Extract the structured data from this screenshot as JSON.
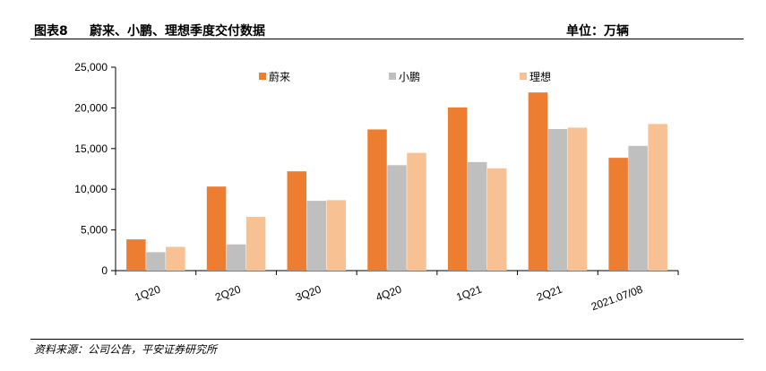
{
  "header": {
    "figure_label": "图表8",
    "title": "蔚来、小鹏、理想季度交付数据",
    "unit": "单位：万辆"
  },
  "source": "资料来源：公司公告，平安证券研究所",
  "chart_data": {
    "type": "bar",
    "categories": [
      "1Q20",
      "2Q20",
      "3Q20",
      "4Q20",
      "1Q21",
      "2Q21",
      "2021.07/08"
    ],
    "series": [
      {
        "name": "蔚来",
        "color": "#ED7D31",
        "values": [
          3838,
          10331,
          12206,
          17353,
          20060,
          21896,
          13864
        ]
      },
      {
        "name": "小鹏",
        "color": "#BFBFBF",
        "values": [
          2271,
          3228,
          8578,
          12964,
          13340,
          17398,
          15326
        ]
      },
      {
        "name": "理想",
        "color": "#F8C193",
        "values": [
          2925,
          6604,
          8660,
          14464,
          12579,
          17575,
          18017
        ]
      }
    ],
    "yticks": [
      "0",
      "5,000",
      "10,000",
      "15,000",
      "20,000",
      "25,000"
    ],
    "ylim": [
      0,
      25000
    ],
    "legend_position": "top",
    "grid": false
  }
}
